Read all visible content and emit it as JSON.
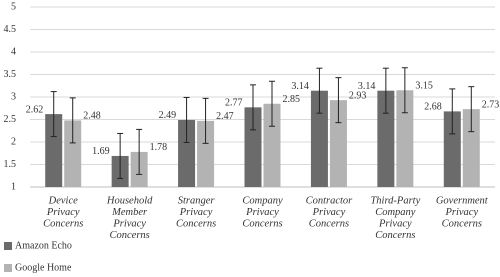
{
  "chart_data": {
    "type": "bar",
    "categories": [
      [
        "Device",
        "Privacy",
        "Concerns"
      ],
      [
        "Household",
        "Member",
        "Privacy",
        "Concerns"
      ],
      [
        "Stranger",
        "Privacy",
        "Concerns"
      ],
      [
        "Company",
        "Privacy",
        "Concerns"
      ],
      [
        "Contractor",
        "Privacy",
        "Concerns"
      ],
      [
        "Third-Party",
        "Company",
        "Privacy",
        "Concerns"
      ],
      [
        "Government",
        "Privacy",
        "Concerns"
      ]
    ],
    "series": [
      {
        "name": "Amazon Echo",
        "color": "#6b6b6b",
        "values": [
          2.62,
          1.69,
          2.49,
          2.77,
          3.14,
          3.14,
          2.68
        ],
        "errors": [
          0.5,
          0.5,
          0.5,
          0.5,
          0.5,
          0.5,
          0.5
        ]
      },
      {
        "name": "Google Home",
        "color": "#b3b3b3",
        "values": [
          2.48,
          1.78,
          2.47,
          2.85,
          2.93,
          3.15,
          2.73
        ],
        "errors": [
          0.5,
          0.5,
          0.5,
          0.5,
          0.5,
          0.5,
          0.5
        ]
      }
    ],
    "ylim": [
      1,
      5
    ],
    "yticks": [
      1,
      1.5,
      2,
      2.5,
      3,
      3.5,
      4,
      4.5,
      5
    ],
    "grid": true
  }
}
